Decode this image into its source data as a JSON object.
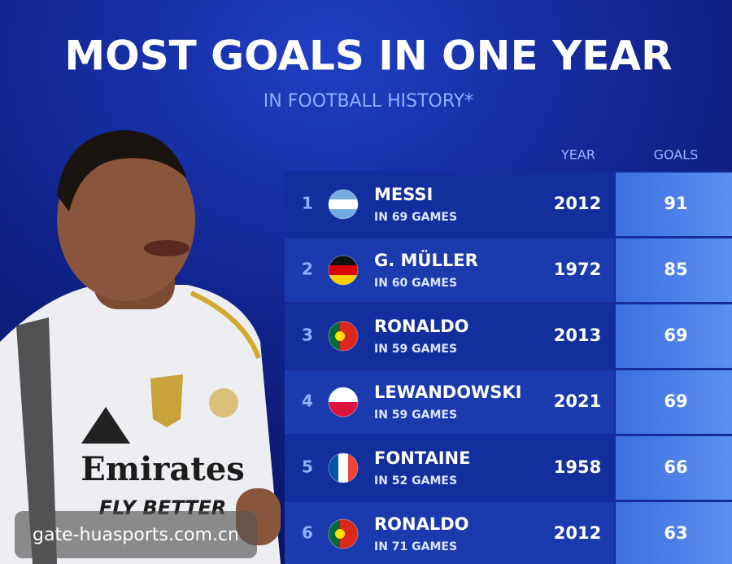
{
  "header": {
    "title": "MOST GOALS IN ONE YEAR",
    "subtitle": "IN FOOTBALL HISTORY*"
  },
  "photo": {
    "shirt_text": [
      "Emirates",
      "FLY BETTER"
    ]
  },
  "table": {
    "columns": [
      "YEAR",
      "GOALS"
    ],
    "rows": [
      {
        "rank": 1,
        "name": "MESSI",
        "games": "IN 69 GAMES",
        "year": 2012,
        "goals": 91
      },
      {
        "rank": 2,
        "name": "G. MÜLLER",
        "games": "IN 60 GAMES",
        "year": 1972,
        "goals": 85
      },
      {
        "rank": 3,
        "name": "RONALDO",
        "games": "IN 59 GAMES",
        "year": 2013,
        "goals": 69
      },
      {
        "rank": 4,
        "name": "LEWANDOWSKI",
        "games": "IN 59 GAMES",
        "year": 2021,
        "goals": 69
      },
      {
        "rank": 5,
        "name": "FONTAINE",
        "games": "IN 52 GAMES",
        "year": 1958,
        "goals": 66
      },
      {
        "rank": 6,
        "name": "RONALDO",
        "games": "IN 71 GAMES",
        "year": 2012,
        "goals": 63
      }
    ]
  },
  "watermark": "gate-huasports.com.cn"
}
